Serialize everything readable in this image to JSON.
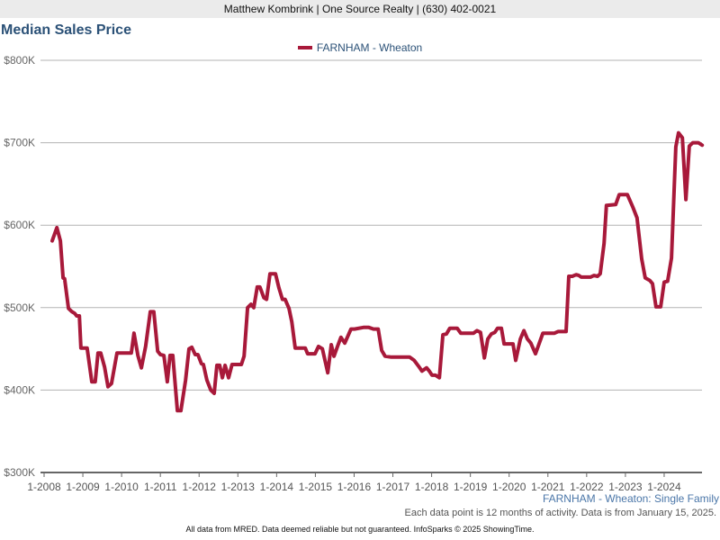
{
  "header": {
    "banner": "Matthew Kombrink | One Source Realty | (630) 402-0021"
  },
  "colors": {
    "series": "#a8193a",
    "title": "#2b5177",
    "grid": "#b3b3b3",
    "axis": "#666666"
  },
  "chart_data": {
    "type": "line",
    "title": "Median Sales Price",
    "xlabel": "",
    "ylabel": "",
    "ylim": [
      300,
      800
    ],
    "xlim": [
      2007.91,
      2025.0
    ],
    "y_unit": "K USD",
    "yticks": [
      300,
      400,
      500,
      600,
      700,
      800
    ],
    "ytick_labels": [
      "$300K",
      "$400K",
      "$500K",
      "$600K",
      "$700K",
      "$800K"
    ],
    "xticks": [
      2008,
      2009,
      2010,
      2011,
      2012,
      2013,
      2014,
      2015,
      2016,
      2017,
      2018,
      2019,
      2020,
      2021,
      2022,
      2023,
      2024
    ],
    "xtick_labels": [
      "1-2008",
      "1-2009",
      "1-2010",
      "1-2011",
      "1-2012",
      "1-2013",
      "1-2014",
      "1-2015",
      "1-2016",
      "1-2017",
      "1-2018",
      "1-2019",
      "1-2020",
      "1-2021",
      "1-2022",
      "1-2023",
      "1-2024"
    ],
    "grid": true,
    "legend_position": "top-center",
    "series": [
      {
        "name": "FARNHAM - Wheaton",
        "points": [
          [
            2008.21,
            581
          ],
          [
            2008.33,
            597
          ],
          [
            2008.42,
            581
          ],
          [
            2008.49,
            536
          ],
          [
            2008.53,
            535
          ],
          [
            2008.63,
            499
          ],
          [
            2008.72,
            495
          ],
          [
            2008.79,
            493
          ],
          [
            2008.84,
            490
          ],
          [
            2008.91,
            490
          ],
          [
            2008.95,
            451
          ],
          [
            2009.11,
            451
          ],
          [
            2009.23,
            410
          ],
          [
            2009.32,
            410
          ],
          [
            2009.39,
            445
          ],
          [
            2009.46,
            445
          ],
          [
            2009.56,
            428
          ],
          [
            2009.65,
            404
          ],
          [
            2009.74,
            408
          ],
          [
            2009.88,
            445
          ],
          [
            2010.25,
            445
          ],
          [
            2010.32,
            469
          ],
          [
            2010.42,
            442
          ],
          [
            2010.51,
            427
          ],
          [
            2010.62,
            453
          ],
          [
            2010.74,
            495
          ],
          [
            2010.83,
            495
          ],
          [
            2010.93,
            447
          ],
          [
            2011.0,
            443
          ],
          [
            2011.09,
            442
          ],
          [
            2011.18,
            410
          ],
          [
            2011.25,
            442
          ],
          [
            2011.32,
            442
          ],
          [
            2011.44,
            375
          ],
          [
            2011.53,
            375
          ],
          [
            2011.65,
            412
          ],
          [
            2011.74,
            450
          ],
          [
            2011.81,
            452
          ],
          [
            2011.9,
            443
          ],
          [
            2011.97,
            443
          ],
          [
            2012.06,
            432
          ],
          [
            2012.11,
            431
          ],
          [
            2012.2,
            412
          ],
          [
            2012.3,
            400
          ],
          [
            2012.39,
            396
          ],
          [
            2012.46,
            430
          ],
          [
            2012.53,
            430
          ],
          [
            2012.6,
            415
          ],
          [
            2012.67,
            430
          ],
          [
            2012.76,
            415
          ],
          [
            2012.85,
            431
          ],
          [
            2013.09,
            431
          ],
          [
            2013.16,
            441
          ],
          [
            2013.25,
            500
          ],
          [
            2013.34,
            504
          ],
          [
            2013.41,
            500
          ],
          [
            2013.5,
            525
          ],
          [
            2013.57,
            525
          ],
          [
            2013.67,
            512
          ],
          [
            2013.74,
            510
          ],
          [
            2013.83,
            541
          ],
          [
            2013.97,
            541
          ],
          [
            2014.06,
            524
          ],
          [
            2014.15,
            510
          ],
          [
            2014.22,
            510
          ],
          [
            2014.32,
            499
          ],
          [
            2014.39,
            483
          ],
          [
            2014.48,
            451
          ],
          [
            2014.74,
            451
          ],
          [
            2014.8,
            444
          ],
          [
            2014.99,
            444
          ],
          [
            2015.08,
            453
          ],
          [
            2015.18,
            450
          ],
          [
            2015.32,
            421
          ],
          [
            2015.41,
            455
          ],
          [
            2015.48,
            441
          ],
          [
            2015.57,
            453
          ],
          [
            2015.66,
            464
          ],
          [
            2015.76,
            457
          ],
          [
            2015.92,
            474
          ],
          [
            2016.01,
            474
          ],
          [
            2016.24,
            476
          ],
          [
            2016.38,
            476
          ],
          [
            2016.5,
            474
          ],
          [
            2016.62,
            474
          ],
          [
            2016.71,
            448
          ],
          [
            2016.8,
            441
          ],
          [
            2016.96,
            440
          ],
          [
            2017.43,
            440
          ],
          [
            2017.55,
            436
          ],
          [
            2017.66,
            429
          ],
          [
            2017.75,
            423
          ],
          [
            2017.87,
            427
          ],
          [
            2017.94,
            423
          ],
          [
            2018.01,
            418
          ],
          [
            2018.1,
            418
          ],
          [
            2018.2,
            415
          ],
          [
            2018.29,
            467
          ],
          [
            2018.38,
            468
          ],
          [
            2018.47,
            475
          ],
          [
            2018.66,
            475
          ],
          [
            2018.75,
            469
          ],
          [
            2019.08,
            469
          ],
          [
            2019.17,
            472
          ],
          [
            2019.26,
            470
          ],
          [
            2019.36,
            439
          ],
          [
            2019.45,
            462
          ],
          [
            2019.54,
            468
          ],
          [
            2019.63,
            470
          ],
          [
            2019.7,
            475
          ],
          [
            2019.8,
            475
          ],
          [
            2019.87,
            456
          ],
          [
            2020.1,
            456
          ],
          [
            2020.17,
            436
          ],
          [
            2020.29,
            462
          ],
          [
            2020.38,
            472
          ],
          [
            2020.47,
            462
          ],
          [
            2020.56,
            457
          ],
          [
            2020.68,
            444
          ],
          [
            2020.87,
            469
          ],
          [
            2021.17,
            469
          ],
          [
            2021.26,
            471
          ],
          [
            2021.47,
            471
          ],
          [
            2021.54,
            538
          ],
          [
            2021.63,
            538
          ],
          [
            2021.73,
            540
          ],
          [
            2021.8,
            539
          ],
          [
            2021.86,
            537
          ],
          [
            2022.1,
            537
          ],
          [
            2022.19,
            539
          ],
          [
            2022.28,
            538
          ],
          [
            2022.35,
            541
          ],
          [
            2022.45,
            578
          ],
          [
            2022.51,
            624
          ],
          [
            2022.75,
            625
          ],
          [
            2022.84,
            637
          ],
          [
            2023.05,
            637
          ],
          [
            2023.19,
            622
          ],
          [
            2023.3,
            609
          ],
          [
            2023.42,
            559
          ],
          [
            2023.51,
            536
          ],
          [
            2023.63,
            533
          ],
          [
            2023.7,
            529
          ],
          [
            2023.79,
            501
          ],
          [
            2023.91,
            501
          ],
          [
            2024.0,
            531
          ],
          [
            2024.09,
            532
          ],
          [
            2024.19,
            560
          ],
          [
            2024.3,
            695
          ],
          [
            2024.37,
            712
          ],
          [
            2024.47,
            706
          ],
          [
            2024.56,
            631
          ],
          [
            2024.65,
            696
          ],
          [
            2024.74,
            700
          ],
          [
            2024.88,
            700
          ],
          [
            2024.98,
            697
          ]
        ]
      }
    ]
  },
  "footer": {
    "subtitle": "FARNHAM - Wheaton: Single Family",
    "note": "Each data point is 12 months of activity. Data is from January 15, 2025.",
    "disclaimer": "All data from MRED. Data deemed reliable but not guaranteed. InfoSparks © 2025 ShowingTime."
  }
}
